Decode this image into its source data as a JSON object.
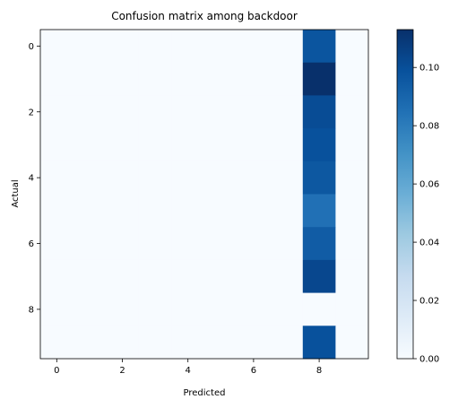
{
  "chart_data": {
    "type": "heatmap",
    "title": "Confusion matrix among backdoor",
    "xlabel": "Predicted",
    "ylabel": "Actual",
    "x_categories": [
      0,
      1,
      2,
      3,
      4,
      5,
      6,
      7,
      8,
      9
    ],
    "y_categories": [
      0,
      1,
      2,
      3,
      4,
      5,
      6,
      7,
      8,
      9
    ],
    "x_tick_labels": [
      "0",
      "2",
      "4",
      "6",
      "8"
    ],
    "y_tick_labels": [
      "0",
      "2",
      "4",
      "6",
      "8"
    ],
    "values": [
      [
        0,
        0,
        0,
        0,
        0,
        0,
        0,
        0,
        0.097,
        0
      ],
      [
        0,
        0,
        0,
        0,
        0,
        0,
        0,
        0,
        0.113,
        0
      ],
      [
        0,
        0,
        0,
        0,
        0,
        0,
        0,
        0,
        0.101,
        0
      ],
      [
        0,
        0,
        0,
        0,
        0,
        0,
        0,
        0,
        0.099,
        0
      ],
      [
        0,
        0,
        0,
        0,
        0,
        0,
        0,
        0,
        0.096,
        0
      ],
      [
        0,
        0,
        0,
        0,
        0,
        0,
        0,
        0,
        0.085,
        0
      ],
      [
        0,
        0,
        0,
        0,
        0,
        0,
        0,
        0,
        0.094,
        0
      ],
      [
        0,
        0,
        0,
        0,
        0,
        0,
        0,
        0,
        0.103,
        0
      ],
      [
        0,
        0,
        0,
        0,
        0,
        0,
        0,
        0,
        0,
        0
      ],
      [
        0,
        0,
        0,
        0,
        0,
        0,
        0,
        0,
        0.099,
        0
      ]
    ],
    "colormap": "Blues",
    "vmin": 0,
    "vmax": 0.113,
    "colorbar_ticks": [
      0.0,
      0.02,
      0.04,
      0.06,
      0.08,
      0.1
    ],
    "colorbar_tick_labels": [
      "0.00",
      "0.02",
      "0.04",
      "0.06",
      "0.08",
      "0.10"
    ],
    "grid": false
  }
}
